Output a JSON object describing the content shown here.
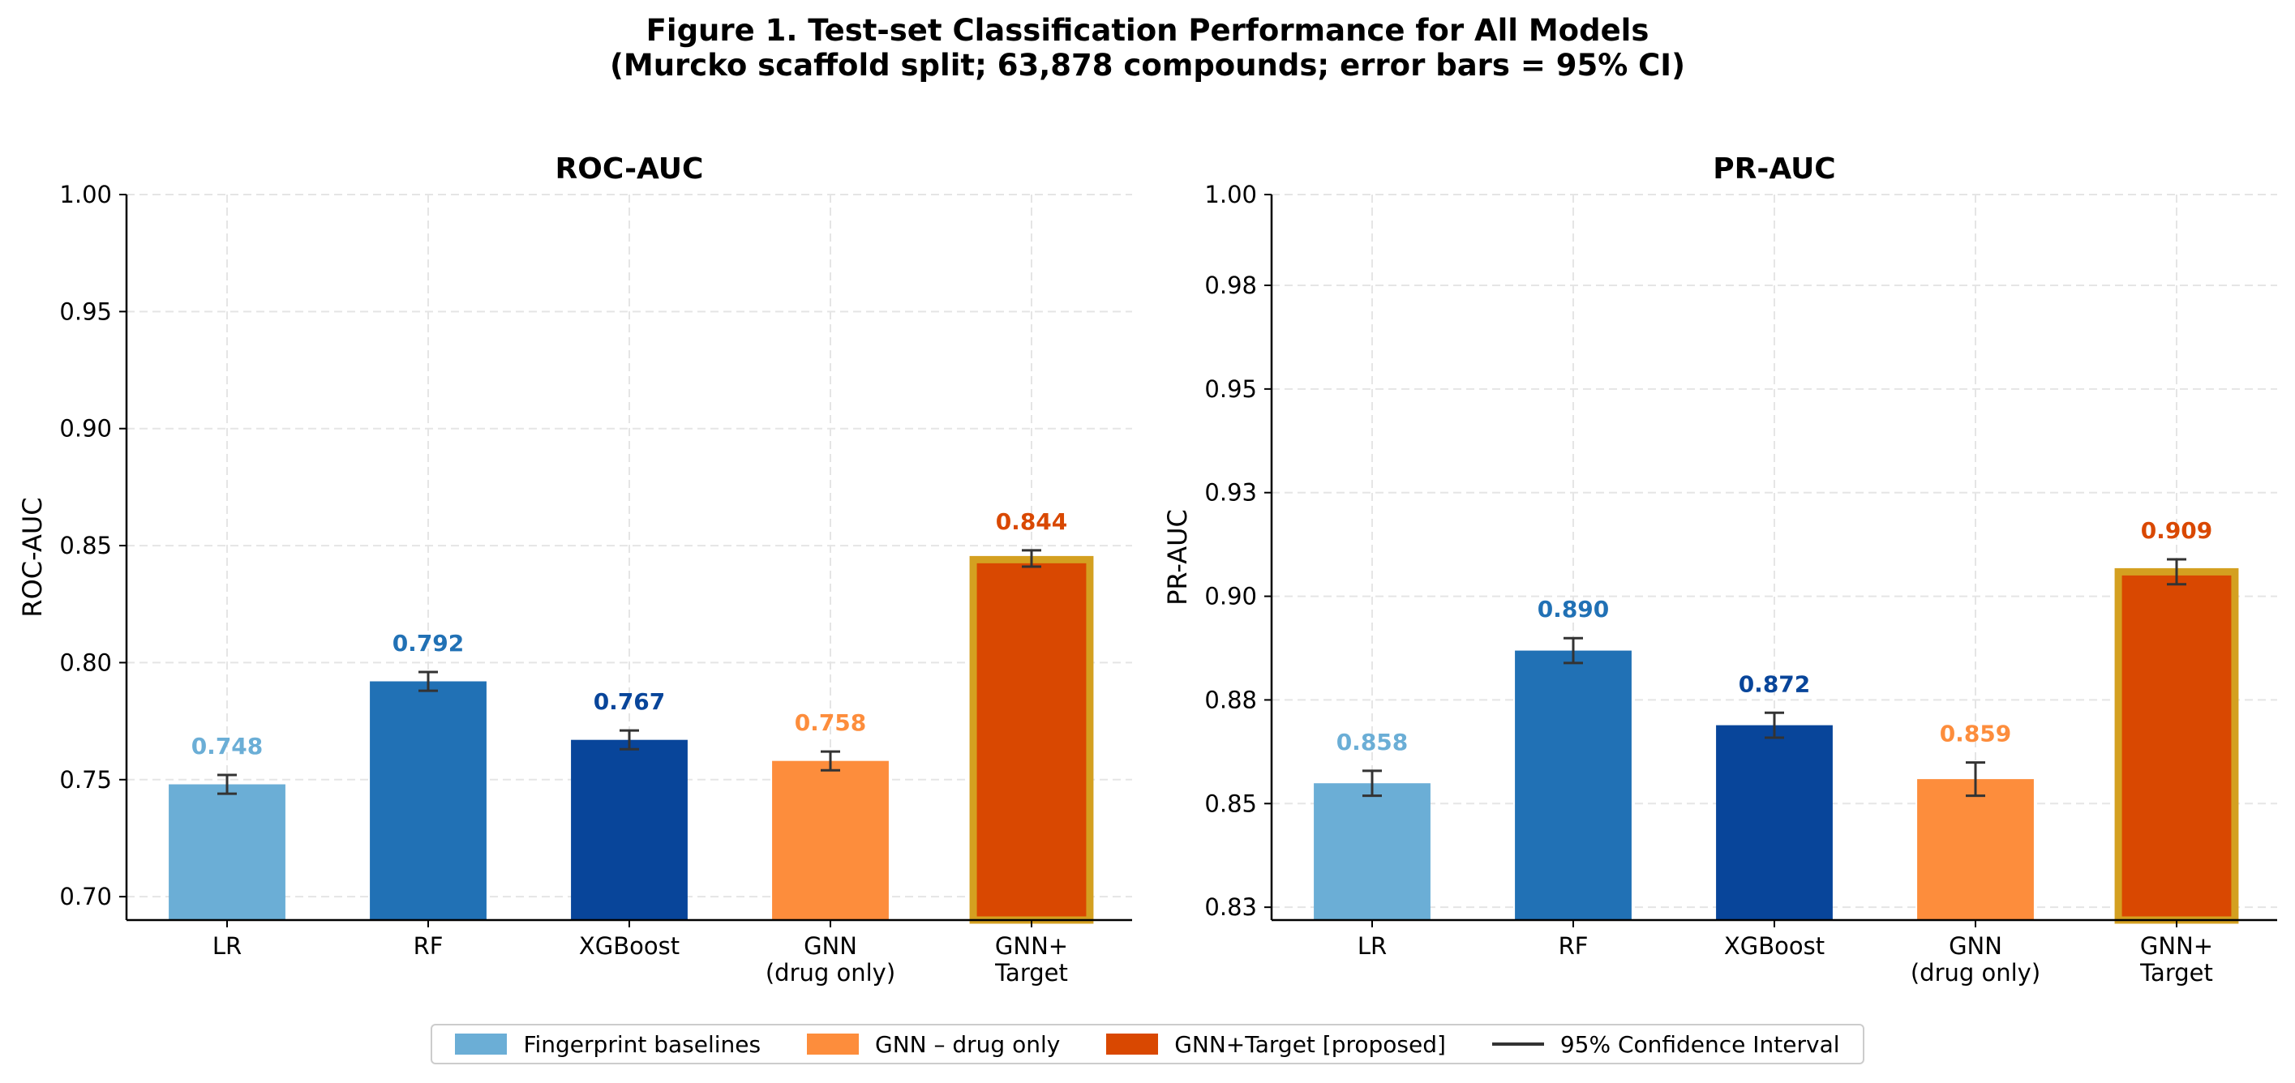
{
  "figure": {
    "title_line1": "Figure 1.  Test-set Classification Performance for All Models",
    "title_line2": "(Murcko scaffold split; 63,878 compounds; error bars = 95% CI)"
  },
  "colors": {
    "fingerprint_lr": "#6baed6",
    "fingerprint_rf": "#2171b5",
    "fingerprint_xgb": "#08459a",
    "gnn_drug": "#fd8d3c",
    "gnn_target": "#d94801",
    "highlight_border": "#d4a020",
    "errorbar": "#333333",
    "grid": "#e5e5e5"
  },
  "legend": {
    "items": [
      {
        "label": "Fingerprint baselines",
        "color": "#6baed6",
        "kind": "patch"
      },
      {
        "label": "GNN – drug only",
        "color": "#fd8d3c",
        "kind": "patch"
      },
      {
        "label": "GNN+Target [proposed]",
        "color": "#d94801",
        "kind": "patch"
      },
      {
        "label": "95% Confidence Interval",
        "color": "#333333",
        "kind": "line"
      }
    ]
  },
  "chart_data": [
    {
      "type": "bar",
      "title": "ROC-AUC",
      "xlabel": "",
      "ylabel": "ROC-AUC",
      "categories": [
        "LR",
        "RF",
        "XGBoost",
        "GNN\n(drug only)",
        "GNN+\nTarget"
      ],
      "values": [
        0.748,
        0.792,
        0.767,
        0.758,
        0.844
      ],
      "value_labels": [
        "0.748",
        "0.792",
        "0.767",
        "0.758",
        "0.844"
      ],
      "ci_low": [
        0.744,
        0.788,
        0.763,
        0.754,
        0.841
      ],
      "ci_high": [
        0.752,
        0.796,
        0.771,
        0.762,
        0.848
      ],
      "bar_colors": [
        "#6baed6",
        "#2171b5",
        "#08459a",
        "#fd8d3c",
        "#d94801"
      ],
      "highlight": [
        false,
        false,
        false,
        false,
        true
      ],
      "ylim": [
        0.69,
        1.0
      ],
      "yticks": [
        0.7,
        0.75,
        0.8,
        0.85,
        0.9,
        0.95,
        1.0
      ],
      "ytick_labels": [
        "0.70",
        "0.75",
        "0.80",
        "0.85",
        "0.90",
        "0.95",
        "1.00"
      ],
      "grid": true
    },
    {
      "type": "bar",
      "title": "PR-AUC",
      "xlabel": "",
      "ylabel": "PR-AUC",
      "categories": [
        "LR",
        "RF",
        "XGBoost",
        "GNN\n(drug only)",
        "GNN+\nTarget"
      ],
      "values": [
        0.858,
        0.89,
        0.872,
        0.859,
        0.909
      ],
      "value_labels": [
        "0.858",
        "0.890",
        "0.872",
        "0.859",
        "0.909"
      ],
      "ci_low": [
        0.855,
        0.887,
        0.869,
        0.855,
        0.906
      ],
      "ci_high": [
        0.861,
        0.893,
        0.875,
        0.863,
        0.912
      ],
      "bar_colors": [
        "#6baed6",
        "#2171b5",
        "#08459a",
        "#fd8d3c",
        "#d94801"
      ],
      "highlight": [
        false,
        false,
        false,
        false,
        true
      ],
      "ylim": [
        0.825,
        1.0
      ],
      "yticks": [
        0.8281,
        0.8531,
        0.8781,
        0.9031,
        0.9281,
        0.9531,
        0.9781,
        1.0
      ],
      "ytick_labels": [
        "0.83",
        "0.85",
        "0.88",
        "0.90",
        "0.93",
        "0.95",
        "0.98",
        "1.00"
      ],
      "grid": true
    }
  ]
}
